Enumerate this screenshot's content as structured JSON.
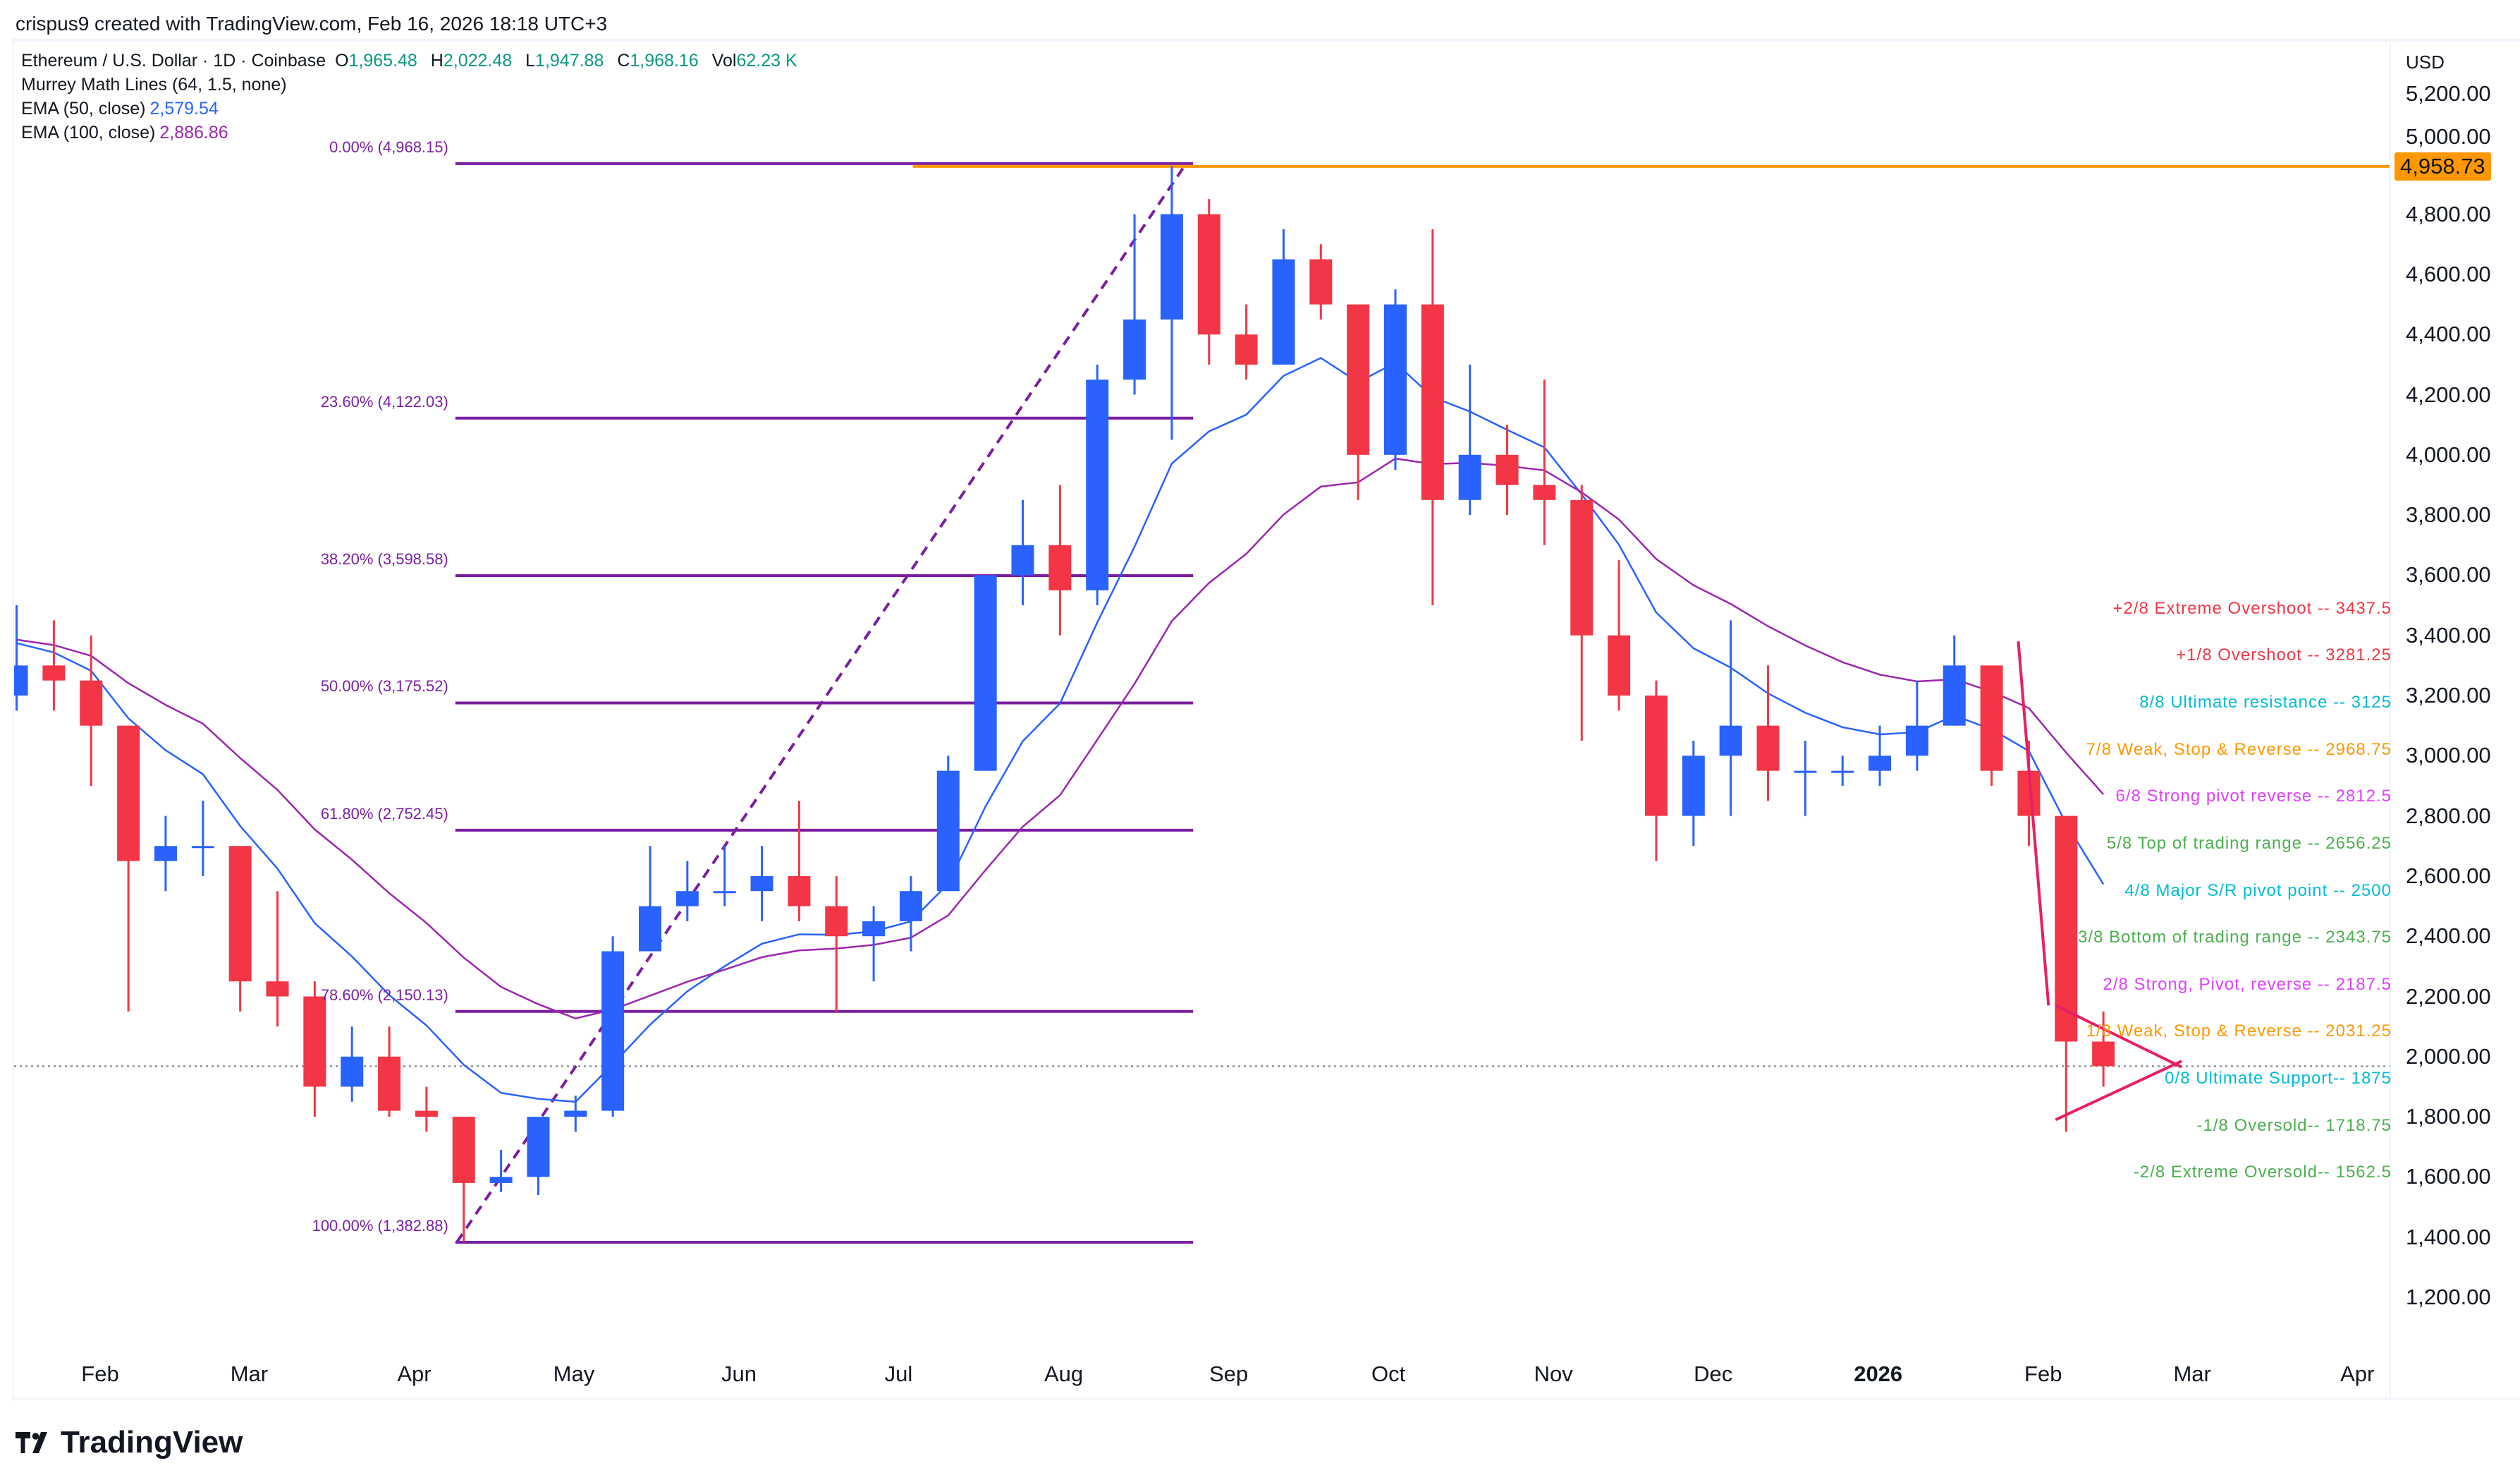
{
  "credit": "crispus9 created with TradingView.com, Feb 16, 2026 18:18 UTC+3",
  "legend": {
    "symbol": "Ethereum / U.S. Dollar · 1D · Coinbase",
    "o_label": "O",
    "o": "1,965.48",
    "h_label": "H",
    "h": "2,022.48",
    "l_label": "L",
    "l": "1,947.88",
    "c_label": "C",
    "c": "1,968.16",
    "vol_label": "Vol",
    "vol": "62.23 K",
    "murrey": "Murrey Math Lines (64, 1.5, none)",
    "ema50_label": "EMA (50, close)",
    "ema50": "2,579.54",
    "ema100_label": "EMA (100, close)",
    "ema100": "2,886.86"
  },
  "logo": "TradingView",
  "chart_data": {
    "type": "candlestick",
    "currency": "USD",
    "ylim": [
      1100,
      5300
    ],
    "y_ticks": [
      "5,200.00",
      "5,000.00",
      "4,800.00",
      "4,600.00",
      "4,400.00",
      "4,200.00",
      "4,000.00",
      "3,800.00",
      "3,600.00",
      "3,400.00",
      "3,200.00",
      "3,000.00",
      "2,800.00",
      "2,600.00",
      "2,400.00",
      "2,200.00",
      "2,000.00",
      "1,800.00",
      "1,600.00",
      "1,400.00",
      "1,200.00"
    ],
    "x_ticks": [
      {
        "label": "Feb",
        "date": "2025-02-01"
      },
      {
        "label": "Mar",
        "date": "2025-03-01"
      },
      {
        "label": "Apr",
        "date": "2025-04-01"
      },
      {
        "label": "May",
        "date": "2025-05-01"
      },
      {
        "label": "Jun",
        "date": "2025-06-01"
      },
      {
        "label": "Jul",
        "date": "2025-07-01"
      },
      {
        "label": "Aug",
        "date": "2025-08-01"
      },
      {
        "label": "Sep",
        "date": "2025-09-01"
      },
      {
        "label": "Oct",
        "date": "2025-10-01"
      },
      {
        "label": "Nov",
        "date": "2025-11-01"
      },
      {
        "label": "Dec",
        "date": "2025-12-01"
      },
      {
        "label": "2026",
        "date": "2026-01-01",
        "bold": true
      },
      {
        "label": "Feb",
        "date": "2026-02-01"
      },
      {
        "label": "Mar",
        "date": "2026-03-01"
      },
      {
        "label": "Apr",
        "date": "2026-04-01"
      }
    ],
    "candles_weekly_approx": {
      "dates": [
        "2025-01-13",
        "2025-01-20",
        "2025-01-27",
        "2025-02-03",
        "2025-02-10",
        "2025-02-17",
        "2025-02-24",
        "2025-03-03",
        "2025-03-10",
        "2025-03-17",
        "2025-03-24",
        "2025-03-31",
        "2025-04-07",
        "2025-04-14",
        "2025-04-21",
        "2025-04-28",
        "2025-05-05",
        "2025-05-12",
        "2025-05-19",
        "2025-05-26",
        "2025-06-02",
        "2025-06-09",
        "2025-06-16",
        "2025-06-23",
        "2025-06-30",
        "2025-07-07",
        "2025-07-14",
        "2025-07-21",
        "2025-07-28",
        "2025-08-04",
        "2025-08-11",
        "2025-08-18",
        "2025-08-25",
        "2025-09-01",
        "2025-09-08",
        "2025-09-15",
        "2025-09-22",
        "2025-09-29",
        "2025-10-06",
        "2025-10-13",
        "2025-10-20",
        "2025-10-27",
        "2025-11-03",
        "2025-11-10",
        "2025-11-17",
        "2025-11-24",
        "2025-12-01",
        "2025-12-08",
        "2025-12-15",
        "2025-12-22",
        "2025-12-29",
        "2026-01-05",
        "2026-01-12",
        "2026-01-19",
        "2026-01-26",
        "2026-02-02",
        "2026-02-09"
      ],
      "open": [
        3200,
        3300,
        3250,
        3100,
        2650,
        2700,
        2700,
        2250,
        2200,
        1900,
        2000,
        1820,
        1800,
        1580,
        1600,
        1800,
        1820,
        2350,
        2500,
        2550,
        2550,
        2600,
        2500,
        2400,
        2450,
        2550,
        2950,
        3600,
        3700,
        3550,
        4250,
        4450,
        4800,
        4400,
        4300,
        4650,
        4500,
        4000,
        4500,
        3850,
        4000,
        3900,
        3850,
        3400,
        3200,
        2800,
        3000,
        3100,
        2950,
        2950,
        2950,
        3000,
        3100,
        3300,
        2950,
        2800,
        2050
      ],
      "high": [
        3500,
        3450,
        3400,
        3100,
        2800,
        2850,
        2700,
        2550,
        2250,
        2100,
        2100,
        1900,
        1800,
        1690,
        1800,
        1870,
        2400,
        2700,
        2650,
        2700,
        2700,
        2850,
        2600,
        2500,
        2600,
        3000,
        3600,
        3850,
        3900,
        4300,
        4800,
        4958.73,
        4850,
        4500,
        4750,
        4700,
        4500,
        4550,
        4750,
        4300,
        4100,
        4250,
        3900,
        3650,
        3250,
        3050,
        3450,
        3300,
        3050,
        3000,
        3100,
        3250,
        3400,
        3300,
        3050,
        2800,
        2150
      ],
      "low": [
        3150,
        3150,
        2900,
        2150,
        2550,
        2600,
        2150,
        2100,
        1800,
        1850,
        1800,
        1750,
        1385,
        1550,
        1540,
        1750,
        1800,
        2350,
        2450,
        2500,
        2450,
        2450,
        2150,
        2250,
        2350,
        2550,
        2950,
        3500,
        3400,
        3500,
        4200,
        4050,
        4300,
        4250,
        4300,
        4450,
        3850,
        3950,
        3500,
        3800,
        3800,
        3700,
        3050,
        3150,
        2650,
        2700,
        2800,
        2850,
        2800,
        2900,
        2900,
        2950,
        3100,
        2900,
        2700,
        1750,
        1900
      ],
      "close": [
        3300,
        3250,
        3100,
        2650,
        2700,
        2700,
        2250,
        2200,
        1900,
        2000,
        1820,
        1800,
        1580,
        1600,
        1800,
        1820,
        2350,
        2500,
        2550,
        2550,
        2600,
        2500,
        2400,
        2450,
        2550,
        2950,
        3600,
        3700,
        3550,
        4250,
        4450,
        4800,
        4400,
        4300,
        4650,
        4500,
        4000,
        4500,
        3850,
        4000,
        3900,
        3850,
        3400,
        3200,
        2800,
        3000,
        3100,
        2950,
        2950,
        2950,
        3000,
        3100,
        3300,
        2950,
        2800,
        2050,
        1968.16
      ]
    },
    "last_price": 1968.16,
    "horizontal_line": {
      "price": 4958.73,
      "label": "4,958.73",
      "start_date": "2025-07-01",
      "color": "#ff9800"
    },
    "fibonacci": {
      "start": {
        "date": "2025-04-09",
        "price": 1382.88
      },
      "end": {
        "date": "2025-08-24",
        "price": 4968.15
      },
      "color": "#7b1fa2",
      "levels": [
        {
          "label": "0.00% (4,968.15)",
          "price": 4968.15
        },
        {
          "label": "23.60% (4,122.03)",
          "price": 4122.03
        },
        {
          "label": "38.20% (3,598.58)",
          "price": 3598.58
        },
        {
          "label": "50.00% (3,175.52)",
          "price": 3175.52
        },
        {
          "label": "61.80% (2,752.45)",
          "price": 2752.45
        },
        {
          "label": "78.60% (2,150.13)",
          "price": 2150.13
        },
        {
          "label": "100.00% (1,382.88)",
          "price": 1382.88
        }
      ]
    },
    "murrey_levels": [
      {
        "label": "+2/8 Extreme Overshoot --  3437.5",
        "price": 3437.5,
        "color": "#f23645"
      },
      {
        "label": "+1/8 Overshoot --  3281.25",
        "price": 3281.25,
        "color": "#f23645"
      },
      {
        "label": "8/8 Ultimate resistance --  3125",
        "price": 3125,
        "color": "#00bcd4"
      },
      {
        "label": "7/8 Weak, Stop & Reverse --  2968.75",
        "price": 2968.75,
        "color": "#ff9800"
      },
      {
        "label": "6/8 Strong pivot reverse --  2812.5",
        "price": 2812.5,
        "color": "#e040fb"
      },
      {
        "label": "5/8 Top of trading range --  2656.25",
        "price": 2656.25,
        "color": "#4caf50"
      },
      {
        "label": "4/8 Major S/R pivot point --  2500",
        "price": 2500,
        "color": "#00bcd4"
      },
      {
        "label": "3/8 Bottom of trading range --  2343.75",
        "price": 2343.75,
        "color": "#4caf50"
      },
      {
        "label": "2/8 Strong, Pivot, reverse --  2187.5",
        "price": 2187.5,
        "color": "#e040fb"
      },
      {
        "label": "1/8 Weak, Stop & Reverse --  2031.25",
        "price": 2031.25,
        "color": "#ff9800"
      },
      {
        "label": "0/8 Ultimate Support--  1875",
        "price": 1875,
        "color": "#00bcd4"
      },
      {
        "label": "-1/8 Oversold--  1718.75",
        "price": 1718.75,
        "color": "#4caf50"
      },
      {
        "label": "-2/8 Extreme Oversold--  1562.5",
        "price": 1562.5,
        "color": "#4caf50"
      }
    ],
    "trendlines": [
      {
        "from": {
          "date": "2026-01-26",
          "price": 3380
        },
        "to": {
          "date": "2026-02-02",
          "price": 2170
        }
      },
      {
        "from": {
          "date": "2026-02-02",
          "price": 2170
        },
        "to": {
          "date": "2026-02-27",
          "price": 1965
        }
      },
      {
        "from": {
          "date": "2026-02-02",
          "price": 1790
        },
        "to": {
          "date": "2026-02-27",
          "price": 1985
        }
      }
    ],
    "colors": {
      "up": "#2962ff",
      "down": "#f23645",
      "ema50": "#2962ff",
      "ema100": "#9c27b0",
      "trendline": "#e91e63"
    }
  }
}
